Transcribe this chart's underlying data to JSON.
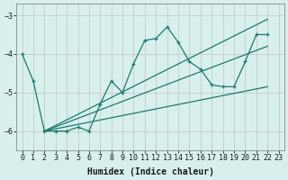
{
  "xlabel": "Humidex (Indice chaleur)",
  "xlim": [
    -0.5,
    23.5
  ],
  "ylim": [
    -6.5,
    -2.7
  ],
  "yticks": [
    -6,
    -5,
    -4,
    -3
  ],
  "xticks": [
    0,
    1,
    2,
    3,
    4,
    5,
    6,
    7,
    8,
    9,
    10,
    11,
    12,
    13,
    14,
    15,
    16,
    17,
    18,
    19,
    20,
    21,
    22,
    23
  ],
  "bg_color": "#d8f0ed",
  "grid_color": "#c8c8c8",
  "line_color": "#1a7a6e",
  "lines": [
    {
      "x": [
        0,
        1,
        2,
        3,
        4,
        5,
        6,
        7,
        8,
        9,
        10,
        11,
        12,
        13,
        14,
        15,
        16,
        17,
        18,
        19,
        20,
        21,
        22
      ],
      "y": [
        -4.0,
        -4.7,
        -6.0,
        -6.0,
        -6.0,
        -5.9,
        -6.0,
        -5.3,
        -4.7,
        -5.0,
        -4.25,
        -3.65,
        -3.6,
        -3.3,
        -3.7,
        -4.2,
        -4.4,
        -4.8,
        -4.85,
        -4.85,
        -4.2,
        -3.5,
        -3.5
      ],
      "marker": true
    },
    {
      "x": [
        2,
        22
      ],
      "y": [
        -6.0,
        -3.1
      ],
      "marker": false
    },
    {
      "x": [
        2,
        22
      ],
      "y": [
        -6.0,
        -3.8
      ],
      "marker": false
    },
    {
      "x": [
        2,
        22
      ],
      "y": [
        -6.0,
        -4.85
      ],
      "marker": false
    }
  ]
}
